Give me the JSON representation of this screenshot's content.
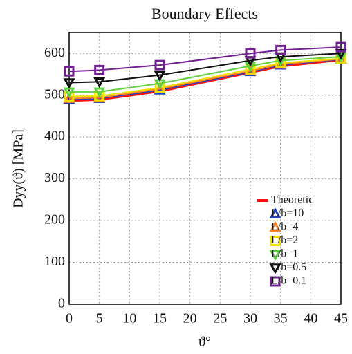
{
  "chart_data": {
    "type": "line",
    "title": "Boundary Effects",
    "x_label": "ϑ°",
    "y_label": "Dyy(ϑ) [MPa]",
    "x": [
      0,
      5,
      15,
      30,
      35,
      45
    ],
    "xlim": [
      0,
      45
    ],
    "xticks": [
      0,
      5,
      10,
      15,
      20,
      25,
      30,
      35,
      40,
      45
    ],
    "ylim": [
      0,
      650
    ],
    "yticks": [
      0,
      100,
      200,
      300,
      400,
      500,
      600
    ],
    "grid": true,
    "legend": "lower right",
    "series": [
      {
        "name": "Theoretic",
        "color": "#ff1010",
        "marker": "none",
        "values": [
          487,
          490,
          510,
          555,
          570,
          585
        ]
      },
      {
        "name": "L/b=10",
        "color": "#2040c0",
        "marker": "triangle-up",
        "values": [
          490,
          492,
          512,
          556,
          572,
          586
        ]
      },
      {
        "name": "L/b=4",
        "color": "#ff8020",
        "marker": "triangle-up",
        "values": [
          492,
          494,
          515,
          558,
          574,
          587
        ]
      },
      {
        "name": "L/b=2",
        "color": "#f0e000",
        "marker": "square",
        "values": [
          497,
          498,
          518,
          562,
          577,
          588
        ]
      },
      {
        "name": "L/b=1",
        "color": "#60d040",
        "marker": "triangle-down",
        "values": [
          508,
          508,
          528,
          570,
          583,
          592
        ]
      },
      {
        "name": "L/b=0.5",
        "color": "#111111",
        "marker": "triangle-down",
        "values": [
          530,
          532,
          548,
          583,
          592,
          600
        ]
      },
      {
        "name": "L/b=0.1",
        "color": "#702090",
        "marker": "square",
        "values": [
          557,
          560,
          572,
          600,
          608,
          615
        ]
      }
    ]
  }
}
